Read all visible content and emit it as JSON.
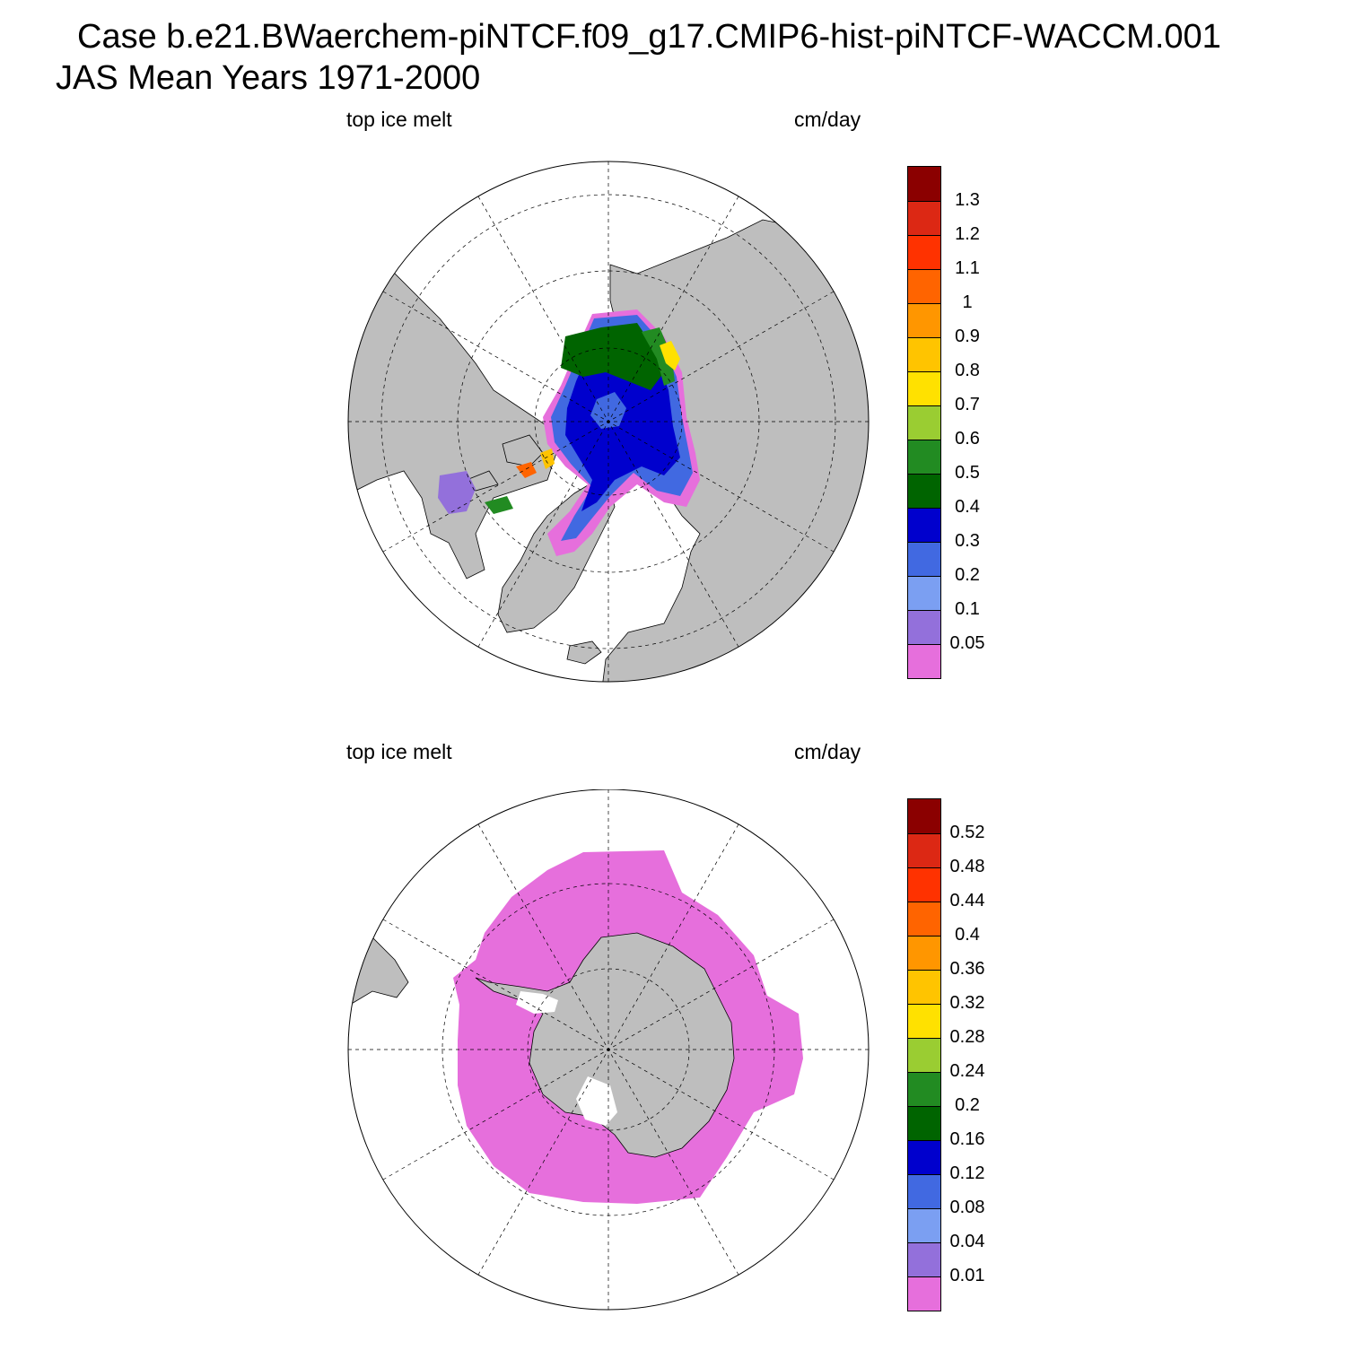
{
  "title": {
    "line1": "Case b.e21.BWaerchem-piNTCF.f09_g17.CMIP6-hist-piNTCF-WACCM.001",
    "line2": "JAS Mean   Years 1971-2000"
  },
  "colors": {
    "land": "#bebebe",
    "ocean": "#ffffff",
    "palette": [
      "#e66fdc",
      "#9370db",
      "#7b9ff2",
      "#4169e1",
      "#0000cd",
      "#006400",
      "#228b22",
      "#9acd32",
      "#ffe100",
      "#ffc400",
      "#ff9600",
      "#ff6400",
      "#ff3200",
      "#dc2814",
      "#8b0000"
    ]
  },
  "panels": [
    {
      "id": "north",
      "left_label": "top ice melt",
      "right_label": "cm/day",
      "hemisphere": "north",
      "colorbar": {
        "levels": [
          "0.05",
          "0.1",
          "0.2",
          "0.3",
          "0.4",
          "0.5",
          "0.6",
          "0.7",
          "0.8",
          "0.9",
          "1",
          "1.1",
          "1.2",
          "1.3"
        ]
      }
    },
    {
      "id": "south",
      "left_label": "top ice melt",
      "right_label": "cm/day",
      "hemisphere": "south",
      "colorbar": {
        "levels": [
          "0.01",
          "0.04",
          "0.08",
          "0.12",
          "0.16",
          "0.2",
          "0.24",
          "0.28",
          "0.32",
          "0.36",
          "0.4",
          "0.44",
          "0.48",
          "0.52"
        ]
      }
    }
  ]
}
